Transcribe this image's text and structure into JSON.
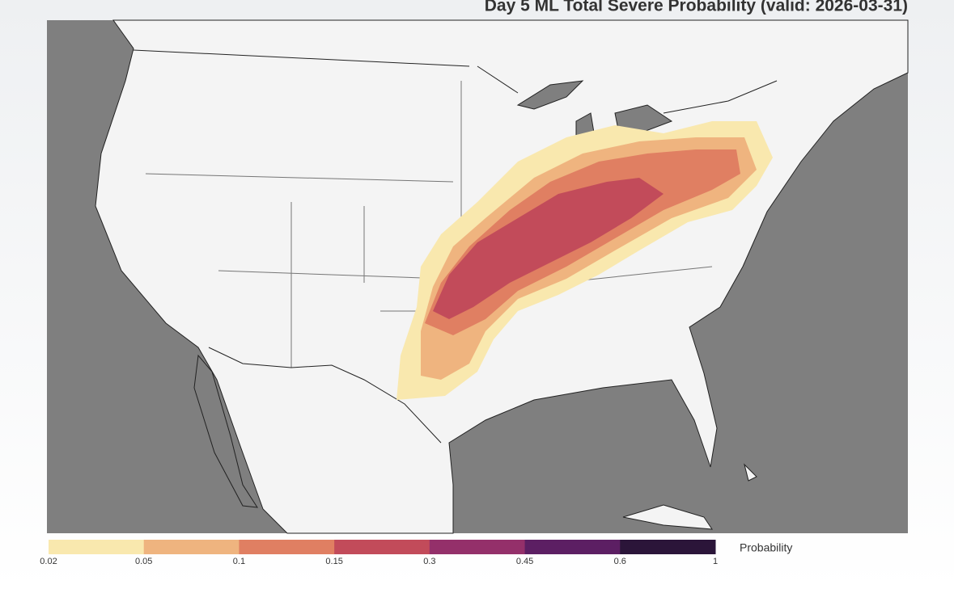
{
  "title": "Day 5 ML Total Severe Probability (valid: 2026-03-31)",
  "colorbar": {
    "label": "Probability",
    "ticks": [
      0.02,
      0.05,
      0.1,
      0.15,
      0.3,
      0.45,
      0.6,
      1
    ],
    "colors": [
      "#f9e8ae",
      "#efb47f",
      "#e07f62",
      "#c24b5a",
      "#94306a",
      "#5c1f63",
      "#2b1539"
    ]
  }
}
